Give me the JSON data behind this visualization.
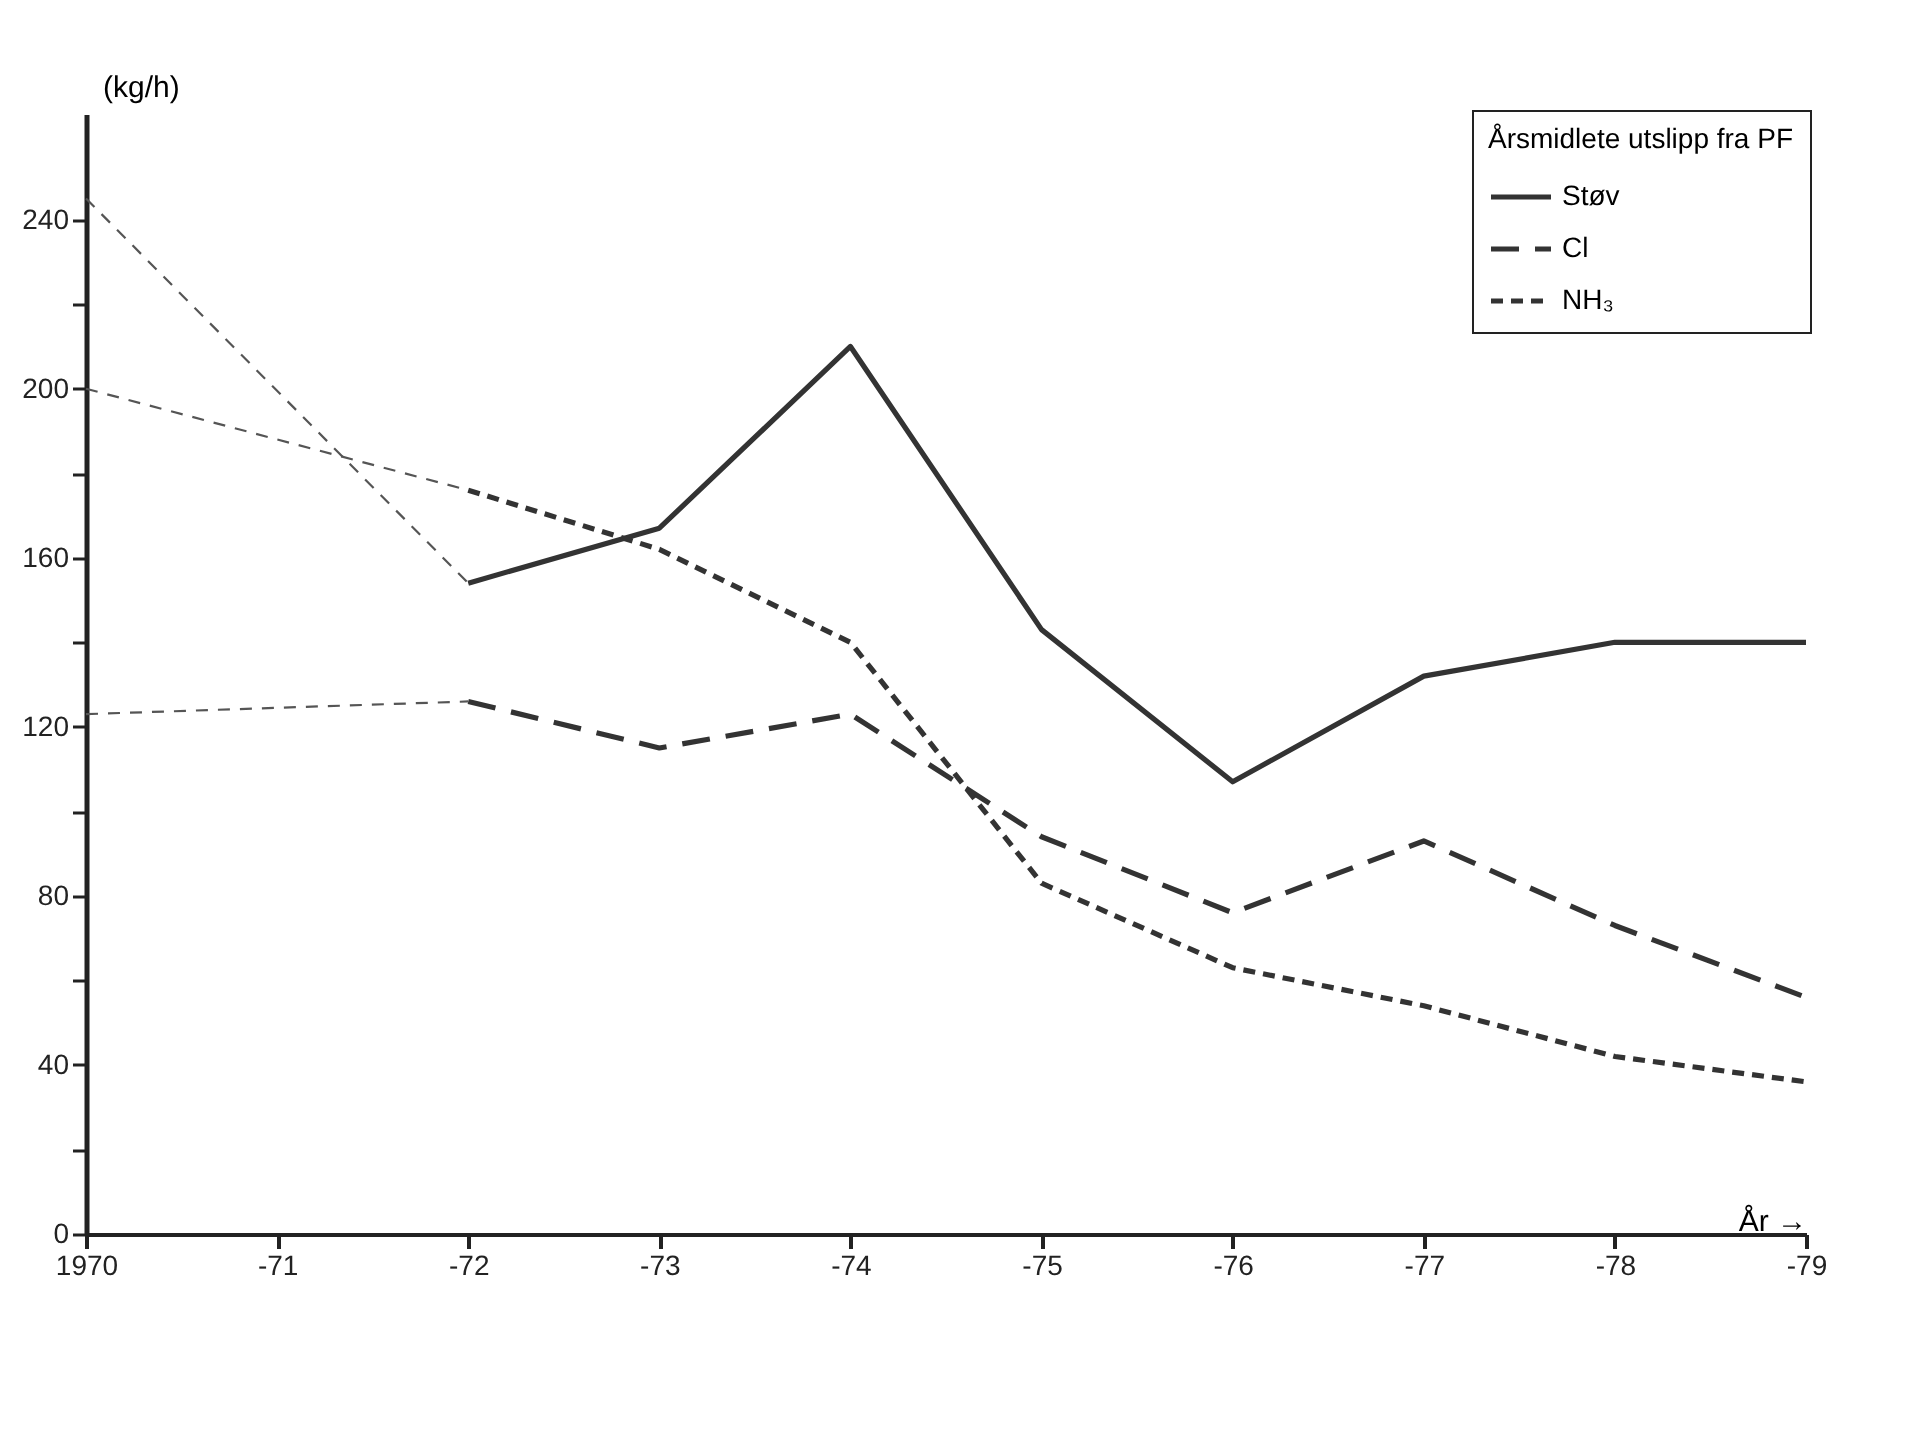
{
  "chart_data": {
    "type": "line",
    "xlabel": "År →",
    "ylabel": "(kg/h)",
    "legend_title": "Årsmidlete utslipp fra PF",
    "categories": [
      "1970",
      "-71",
      "-72",
      "-73",
      "-74",
      "-75",
      "-76",
      "-77",
      "-78",
      "-79"
    ],
    "ylim": [
      0,
      265
    ],
    "yticks": [
      0,
      {
        "value": 20,
        "label": null
      },
      40,
      {
        "value": 60,
        "label": null
      },
      80,
      {
        "value": 100,
        "label": null
      },
      120,
      {
        "value": 140,
        "label": null
      },
      160,
      {
        "value": 180,
        "label": null
      },
      200,
      {
        "value": 220,
        "label": null
      },
      240
    ],
    "grid": false,
    "legend": "top right",
    "marker": "none",
    "series": [
      {
        "name": "Støv",
        "color": "#333333",
        "line_style": "solid",
        "values": [
          null,
          null,
          154,
          167,
          210,
          143,
          107,
          132,
          140,
          140
        ]
      },
      {
        "name": "Cl",
        "color": "#333333",
        "line_style": "dashed",
        "values": [
          null,
          null,
          126,
          115,
          123,
          94,
          76,
          93,
          73,
          56
        ]
      },
      {
        "name": "NH₃",
        "color": "#333333",
        "line_style": "dotted",
        "values": [
          null,
          null,
          176,
          162,
          140,
          83,
          63,
          54,
          42,
          36
        ]
      },
      {
        "color": "#555555",
        "line_style": "dashed",
        "values": [
          245,
          null,
          154,
          null,
          null,
          null,
          null,
          null,
          null,
          null
        ]
      },
      {
        "color": "#555555",
        "line_style": "dashed",
        "values": [
          123,
          null,
          126,
          null,
          null,
          null,
          null,
          null,
          null,
          null
        ]
      },
      {
        "color": "#555555",
        "line_style": "dashed",
        "values": [
          200,
          null,
          176,
          null,
          null,
          null,
          null,
          null,
          null,
          null
        ]
      }
    ]
  }
}
